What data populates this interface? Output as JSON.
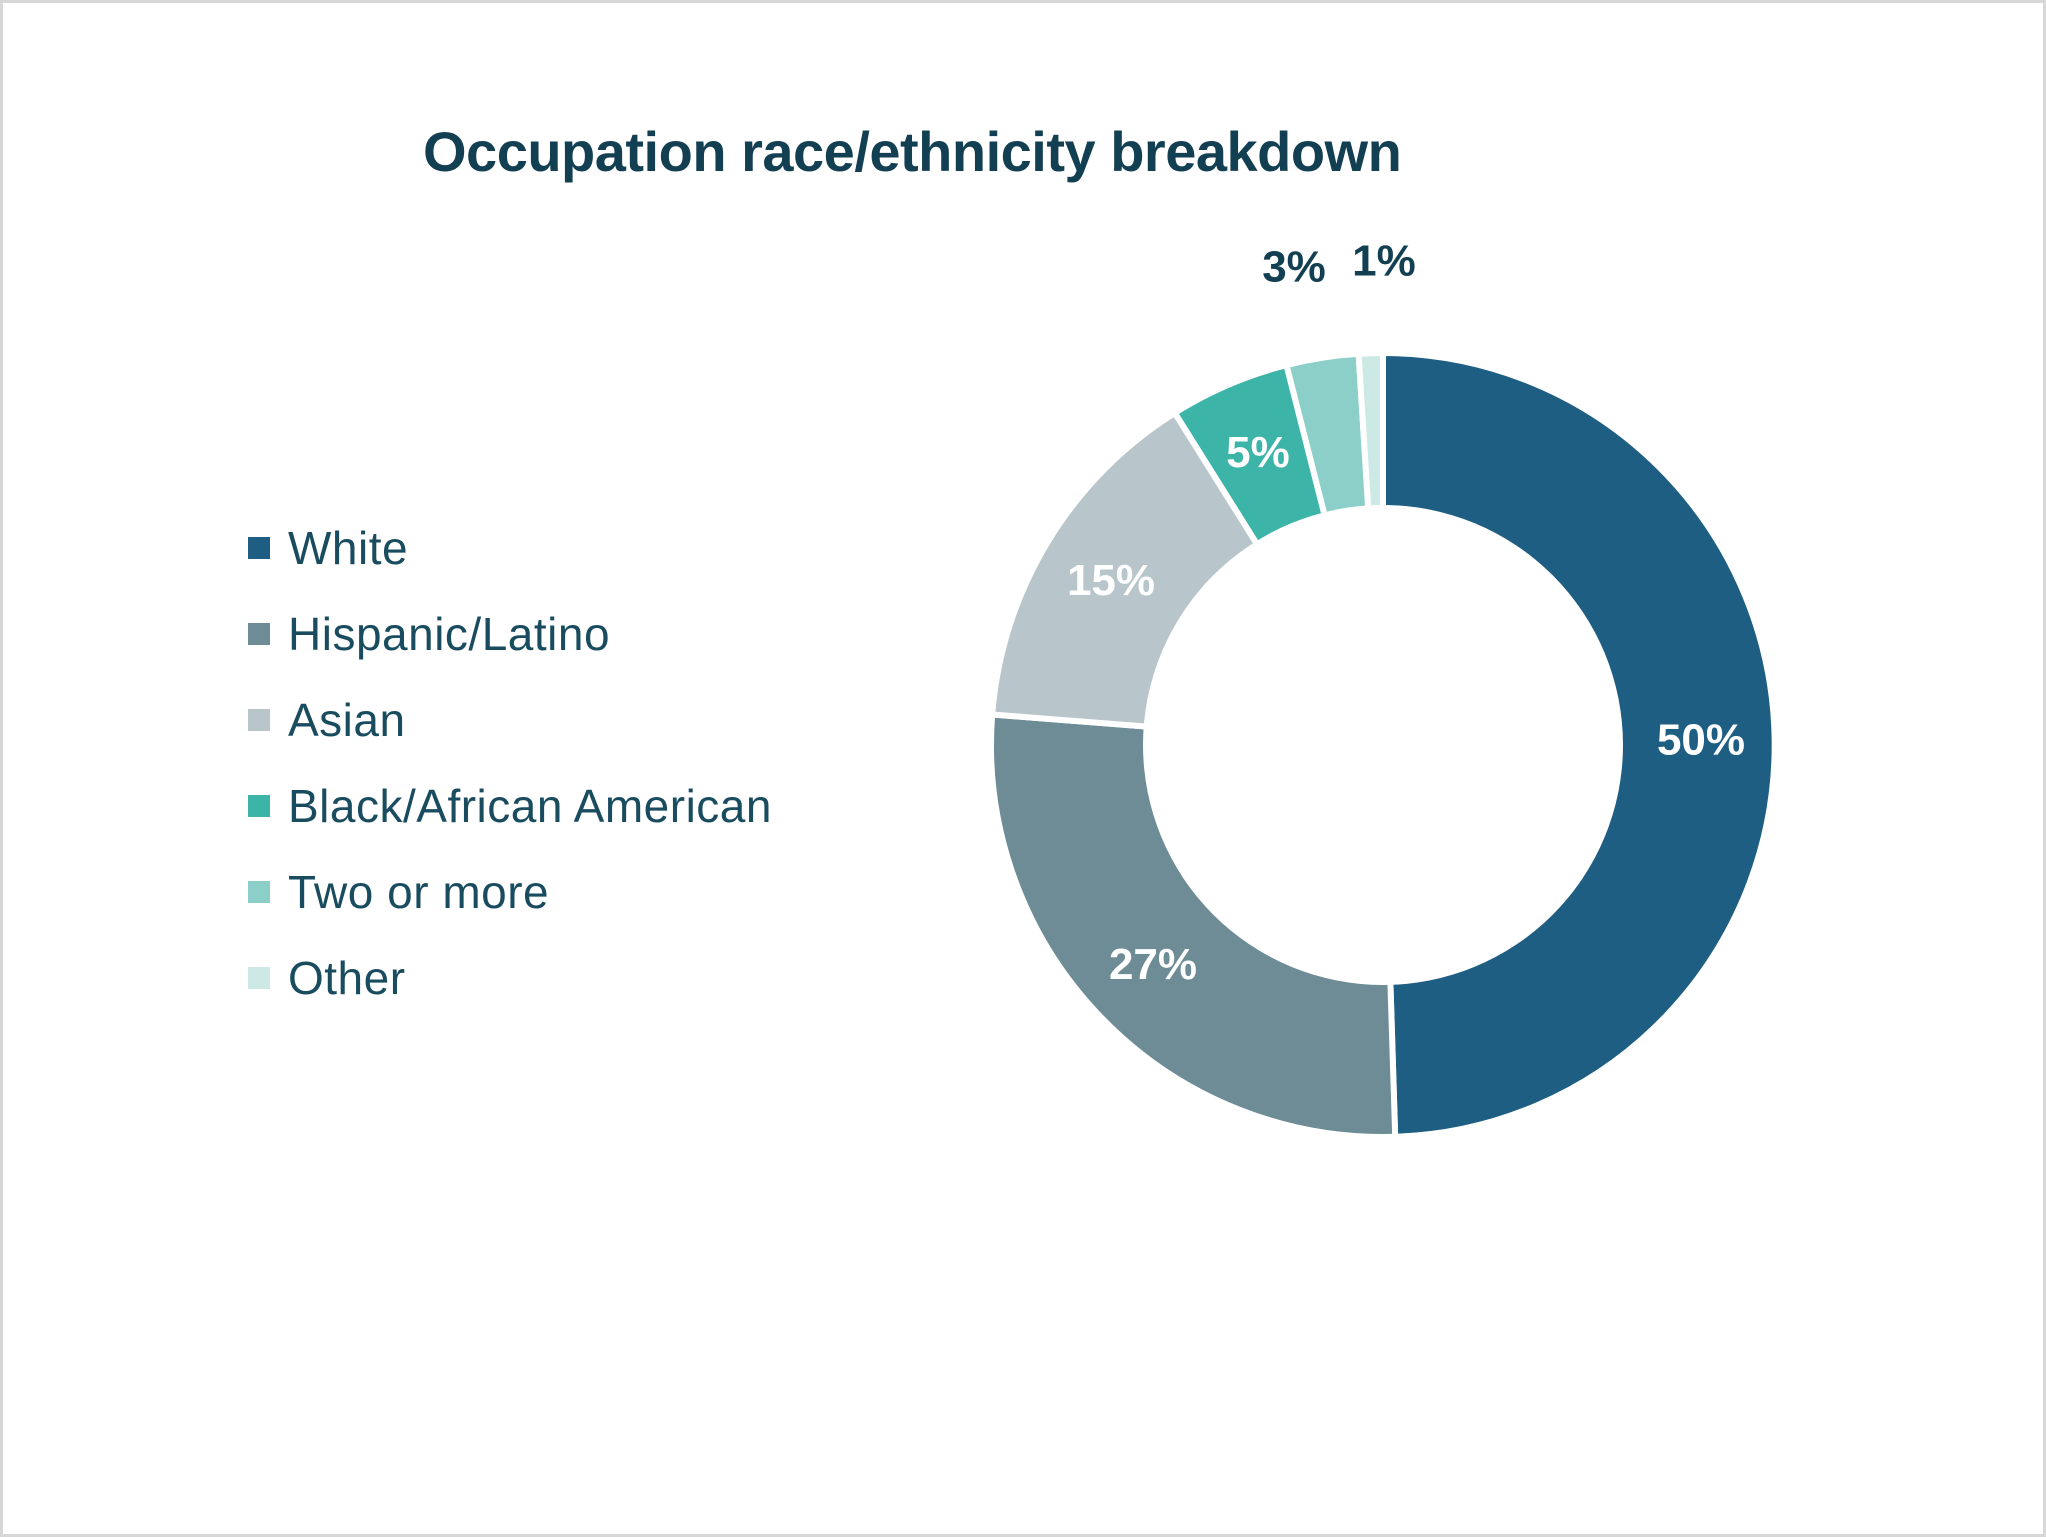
{
  "page": {
    "background": "#ffffff",
    "border_color": "#d7d7d7",
    "title_color": "#133f52",
    "legend_text_color": "#1a4c60"
  },
  "chart_data": {
    "type": "pie",
    "subtype": "donut",
    "title": "Occupation race/ethnicity breakdown",
    "unit": "%",
    "legend_position": "left",
    "direction": "clockwise",
    "start_angle": "12 o'clock",
    "donut_hole_ratio": 0.61,
    "inside_label_color": "#ffffff",
    "outside_label_color": "#133f52",
    "categories": [
      "White",
      "Hispanic/Latino",
      "Asian",
      "Black/African American",
      "Two or more",
      "Other"
    ],
    "values": [
      50,
      27,
      15,
      5,
      3,
      1
    ],
    "series": [
      {
        "label": "White",
        "value": 50,
        "display": "50%",
        "color": "#1E5E83",
        "label_placement": "inside"
      },
      {
        "label": "Hispanic/Latino",
        "value": 27,
        "display": "27%",
        "color": "#6D8C96",
        "label_placement": "inside"
      },
      {
        "label": "Asian",
        "value": 15,
        "display": "15%",
        "color": "#B8C6CC",
        "label_placement": "inside"
      },
      {
        "label": "Black/African American",
        "value": 5,
        "display": "5%",
        "color": "#3DB4A8",
        "label_placement": "inside"
      },
      {
        "label": "Two or more",
        "value": 3,
        "display": "3%",
        "color": "#8CCFC8",
        "label_placement": "outside"
      },
      {
        "label": "Other",
        "value": 1,
        "display": "1%",
        "color": "#CDE9E5",
        "label_placement": "outside"
      }
    ]
  }
}
